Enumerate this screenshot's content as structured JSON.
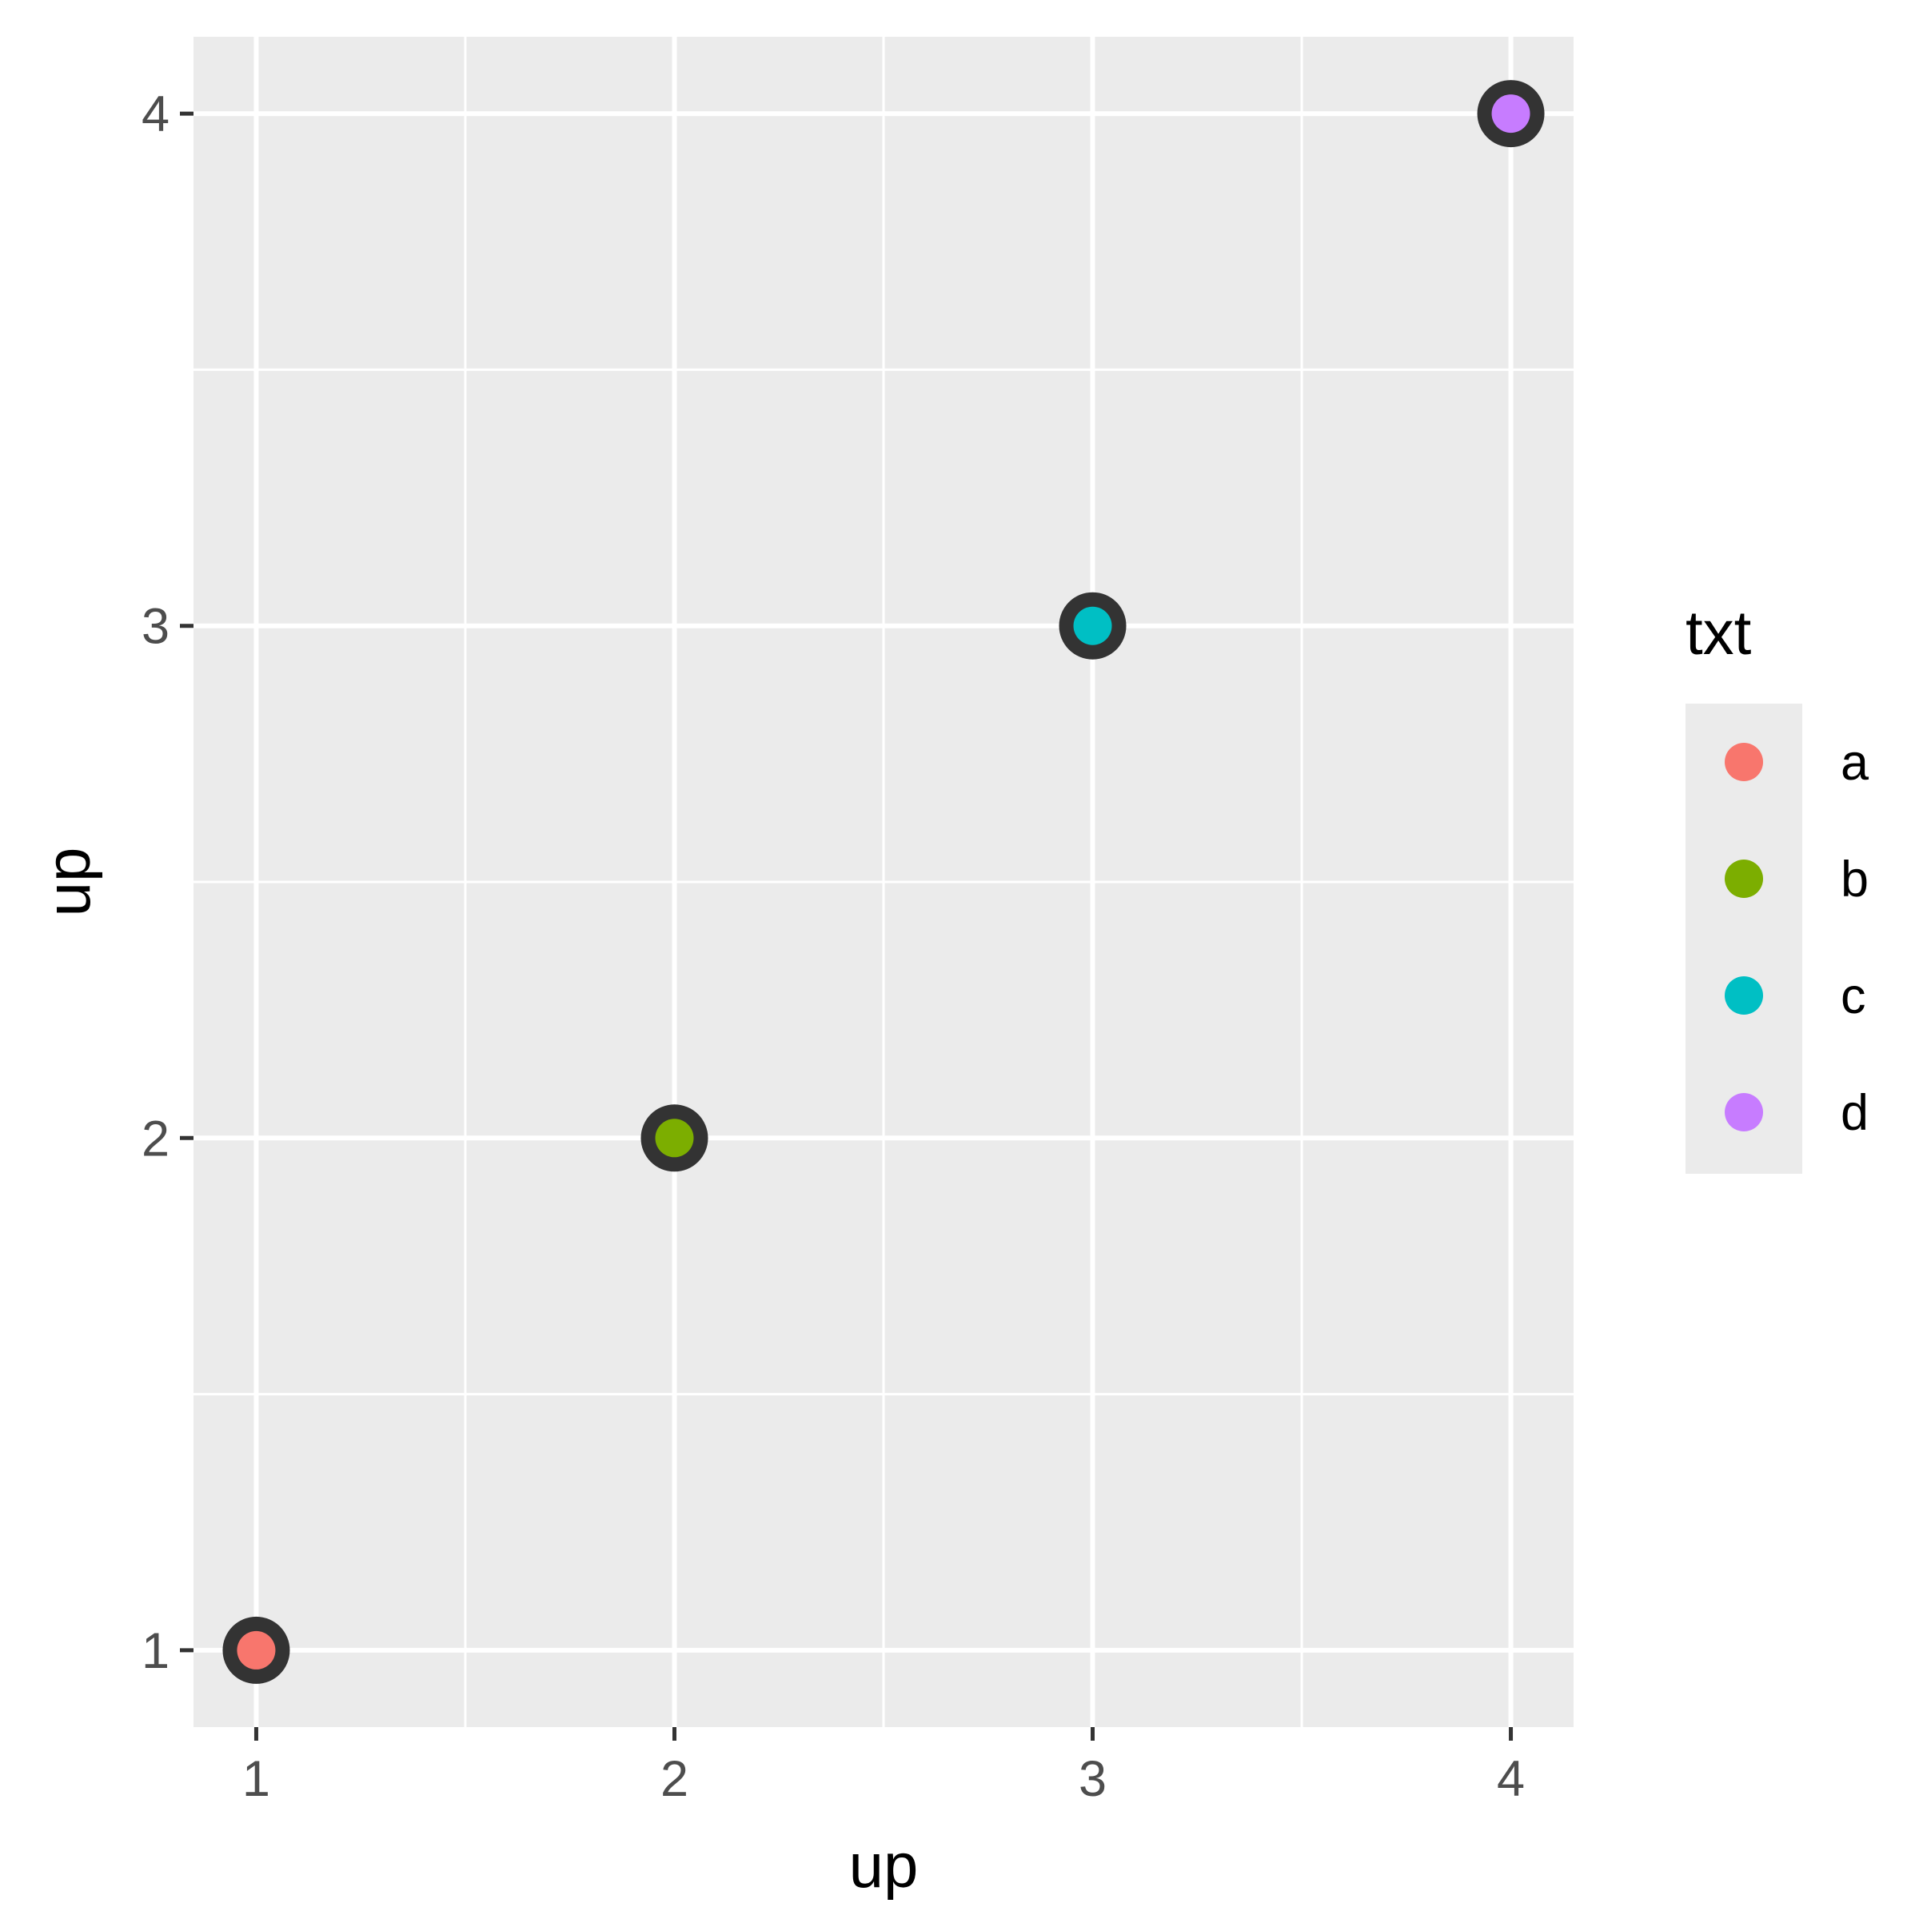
{
  "chart_data": {
    "type": "scatter",
    "title": "",
    "xlabel": "up",
    "ylabel": "up",
    "xlim": [
      0.85,
      4.15
    ],
    "ylim": [
      0.85,
      4.15
    ],
    "x_ticks": [
      1,
      2,
      3,
      4
    ],
    "y_ticks": [
      1,
      2,
      3,
      4
    ],
    "x_tick_labels": [
      "1",
      "2",
      "3",
      "4"
    ],
    "y_tick_labels": [
      "1",
      "2",
      "3",
      "4"
    ],
    "grid": true,
    "panel_background": "#EBEBEB",
    "grid_color": "#FFFFFF",
    "outline_color": "#333333",
    "points": [
      {
        "x": 1,
        "y": 1,
        "txt": "a"
      },
      {
        "x": 2,
        "y": 2,
        "txt": "b"
      },
      {
        "x": 3,
        "y": 3,
        "txt": "c"
      },
      {
        "x": 4,
        "y": 4,
        "txt": "d"
      }
    ],
    "legend": {
      "title": "txt",
      "position": "right",
      "entries": [
        {
          "label": "a",
          "color": "#F8766D"
        },
        {
          "label": "b",
          "color": "#7CAE00"
        },
        {
          "label": "c",
          "color": "#00BFC4"
        },
        {
          "label": "d",
          "color": "#C77CFF"
        }
      ]
    }
  }
}
